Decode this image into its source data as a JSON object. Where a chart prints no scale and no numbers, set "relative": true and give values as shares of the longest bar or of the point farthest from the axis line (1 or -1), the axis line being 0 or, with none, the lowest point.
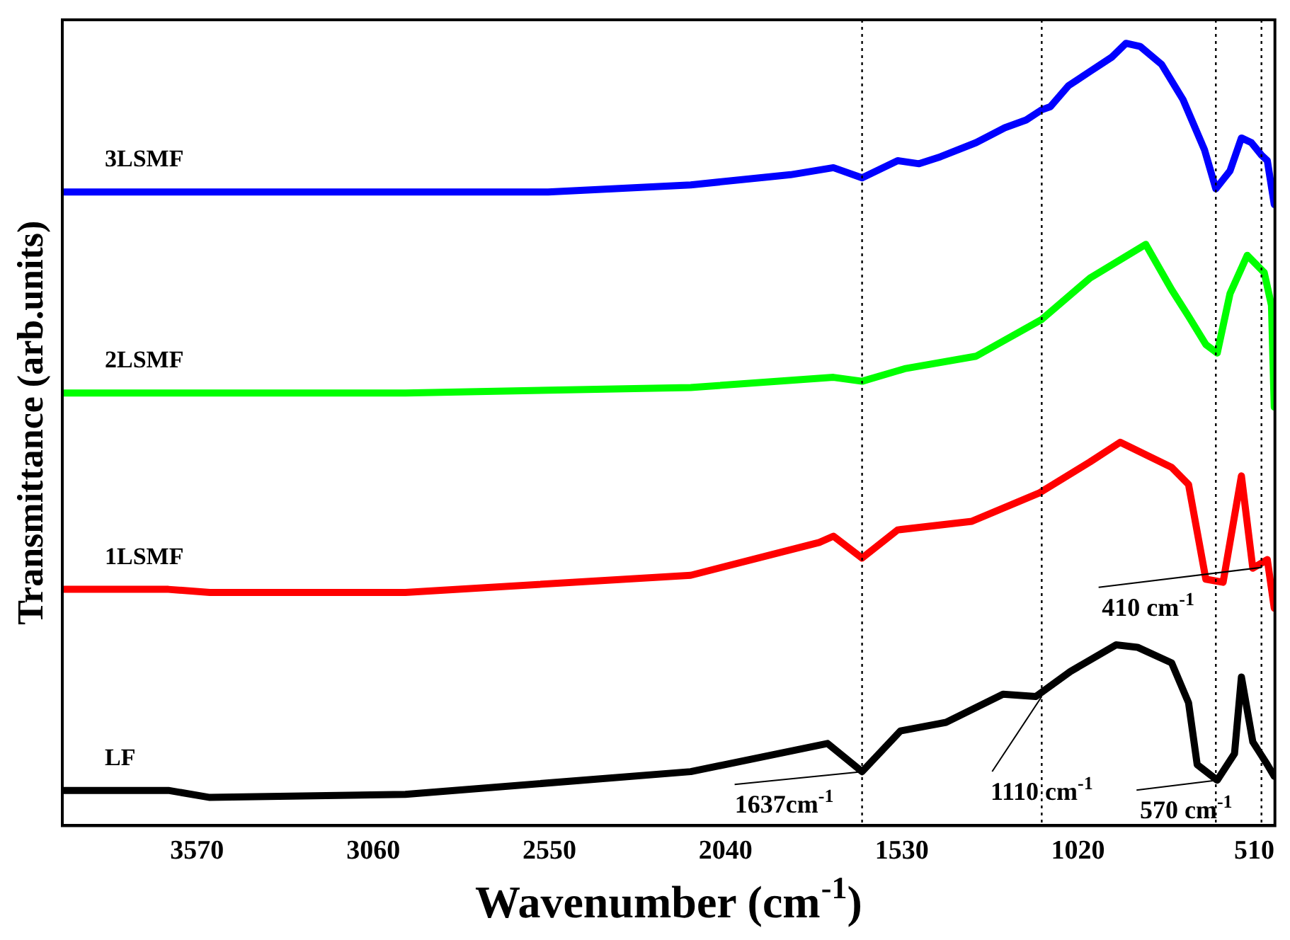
{
  "chart_data": {
    "type": "line",
    "xlabel": "Wavenumber (cm$^{-1}$)",
    "ylabel": "Transmittance (arb.units)",
    "relative": true,
    "xlim": [
      3960,
      450
    ],
    "xticks": [
      3570,
      3060,
      2550,
      2040,
      1530,
      1020,
      510
    ],
    "series": [
      {
        "name": "3LSMF",
        "color": "#0000ff",
        "x": [
          3958,
          2554,
          2141,
          1852,
          1728,
          1645,
          1542,
          1480,
          1418,
          1315,
          1232,
          1170,
          1125,
          1100,
          1047,
          985,
          923,
          881,
          840,
          778,
          716,
          654,
          621,
          580,
          547,
          518,
          489,
          472,
          452
        ],
        "values": [
          0.81,
          0.81,
          0.819,
          0.832,
          0.841,
          0.828,
          0.85,
          0.846,
          0.855,
          0.873,
          0.892,
          0.902,
          0.915,
          0.919,
          0.946,
          0.964,
          0.982,
          1.0,
          0.996,
          0.973,
          0.928,
          0.864,
          0.814,
          0.837,
          0.879,
          0.873,
          0.857,
          0.85,
          0.794
        ]
      },
      {
        "name": "2LSMF",
        "color": "#00ff00",
        "x": [
          3958,
          2967,
          2141,
          1728,
          1645,
          1522,
          1315,
          1125,
          985,
          824,
          749,
          700,
          650,
          617,
          580,
          530,
          481,
          460,
          452
        ],
        "values": [
          0.553,
          0.553,
          0.56,
          0.573,
          0.568,
          0.584,
          0.6,
          0.647,
          0.7,
          0.743,
          0.685,
          0.651,
          0.615,
          0.604,
          0.68,
          0.729,
          0.707,
          0.665,
          0.535
        ]
      },
      {
        "name": "1LSMF",
        "color": "#ff0000",
        "x": [
          3958,
          3653,
          3533,
          2967,
          2141,
          1769,
          1728,
          1645,
          1542,
          1327,
          1133,
          985,
          898,
          749,
          700,
          650,
          600,
          547,
          514,
          472,
          452
        ],
        "values": [
          0.302,
          0.302,
          0.298,
          0.298,
          0.32,
          0.362,
          0.37,
          0.342,
          0.378,
          0.389,
          0.425,
          0.465,
          0.49,
          0.458,
          0.436,
          0.315,
          0.311,
          0.447,
          0.329,
          0.34,
          0.278
        ]
      },
      {
        "name": "LF",
        "color": "#000000",
        "x": [
          3958,
          3653,
          3533,
          2967,
          2141,
          1745,
          1645,
          1534,
          1402,
          1237,
          1142,
          1042,
          910,
          848,
          749,
          700,
          675,
          617,
          567,
          547,
          514,
          472,
          452
        ],
        "values": [
          0.045,
          0.045,
          0.036,
          0.04,
          0.069,
          0.105,
          0.069,
          0.121,
          0.132,
          0.168,
          0.165,
          0.197,
          0.231,
          0.228,
          0.208,
          0.157,
          0.078,
          0.058,
          0.092,
          0.19,
          0.107,
          0.078,
          0.063
        ]
      }
    ],
    "ref_lines": [
      {
        "axis": "x",
        "value": 1645,
        "color": "#000000",
        "line_style": "dotted"
      },
      {
        "axis": "x",
        "value": 1125,
        "color": "#000000",
        "line_style": "dotted"
      },
      {
        "axis": "x",
        "value": 621,
        "color": "#000000",
        "line_style": "dotted"
      },
      {
        "axis": "x",
        "value": 489,
        "color": "#000000",
        "line_style": "dotted"
      }
    ],
    "annotations": [
      {
        "text": "1637cm$^{-1}$",
        "x": 1645,
        "y": 0.069
      },
      {
        "text": "1110 cm$^{-1}$",
        "x": 1125,
        "y": 0.165
      },
      {
        "text": "570 cm$^{-1}$",
        "x": 617,
        "y": 0.058
      },
      {
        "text": "410 cm$^{-1}$",
        "x": 489,
        "y": 0.33
      }
    ],
    "grid": false,
    "legend": false,
    "marker": "none",
    "line_style": "solid"
  }
}
